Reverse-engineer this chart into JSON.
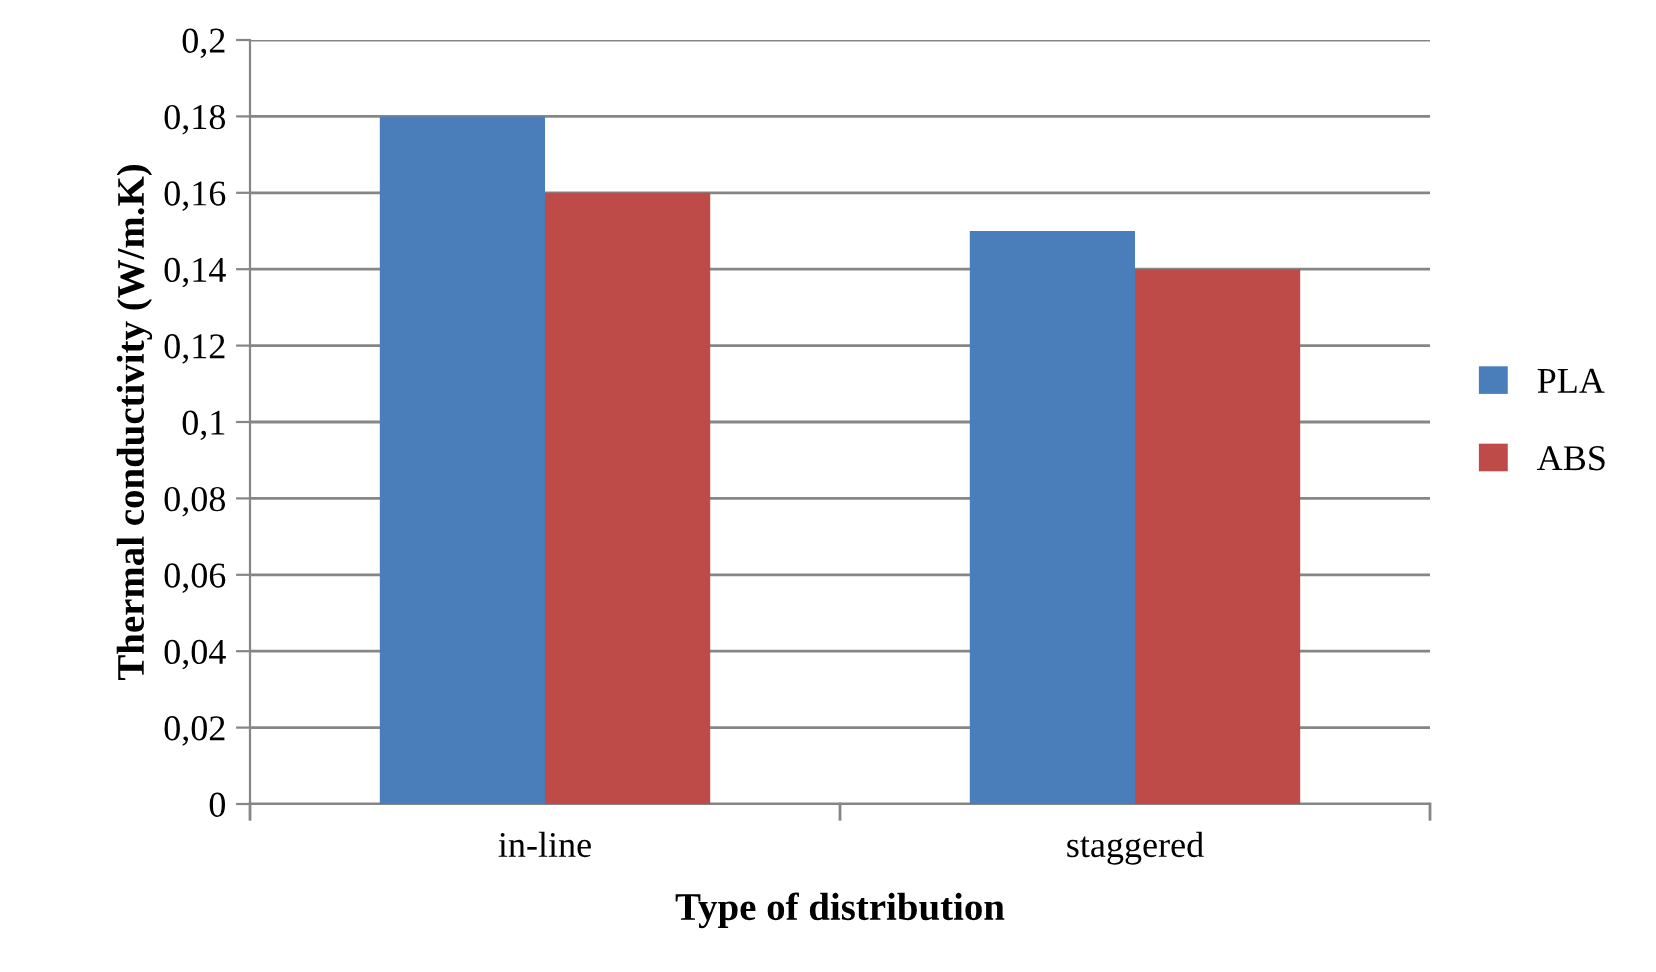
{
  "chart_data": {
    "type": "bar",
    "xlabel": "Type of distribution",
    "ylabel": "Thermal conductivity (W/m.K)",
    "categories": [
      "in-line",
      "staggered"
    ],
    "series": [
      {
        "name": "PLA",
        "color": "#4a7ebb",
        "values": [
          0.18,
          0.15
        ]
      },
      {
        "name": "ABS",
        "color": "#be4b48",
        "values": [
          0.16,
          0.14
        ]
      }
    ],
    "ylim": [
      0,
      0.2
    ],
    "yticks": [
      0,
      {
        "value": 0.02,
        "label": "0,02"
      },
      {
        "value": 0.04,
        "label": "0,04"
      },
      {
        "value": 0.06,
        "label": "0,06"
      },
      {
        "value": 0.08,
        "label": "0,08"
      },
      {
        "value": 0.1,
        "label": "0,1"
      },
      {
        "value": 0.12,
        "label": "0,12"
      },
      {
        "value": 0.14,
        "label": "0,14"
      },
      {
        "value": 0.16,
        "label": "0,16"
      },
      {
        "value": 0.18,
        "label": "0,18"
      },
      {
        "value": 0.2,
        "label": "0,2"
      }
    ],
    "grid": "y",
    "legend": "right"
  }
}
